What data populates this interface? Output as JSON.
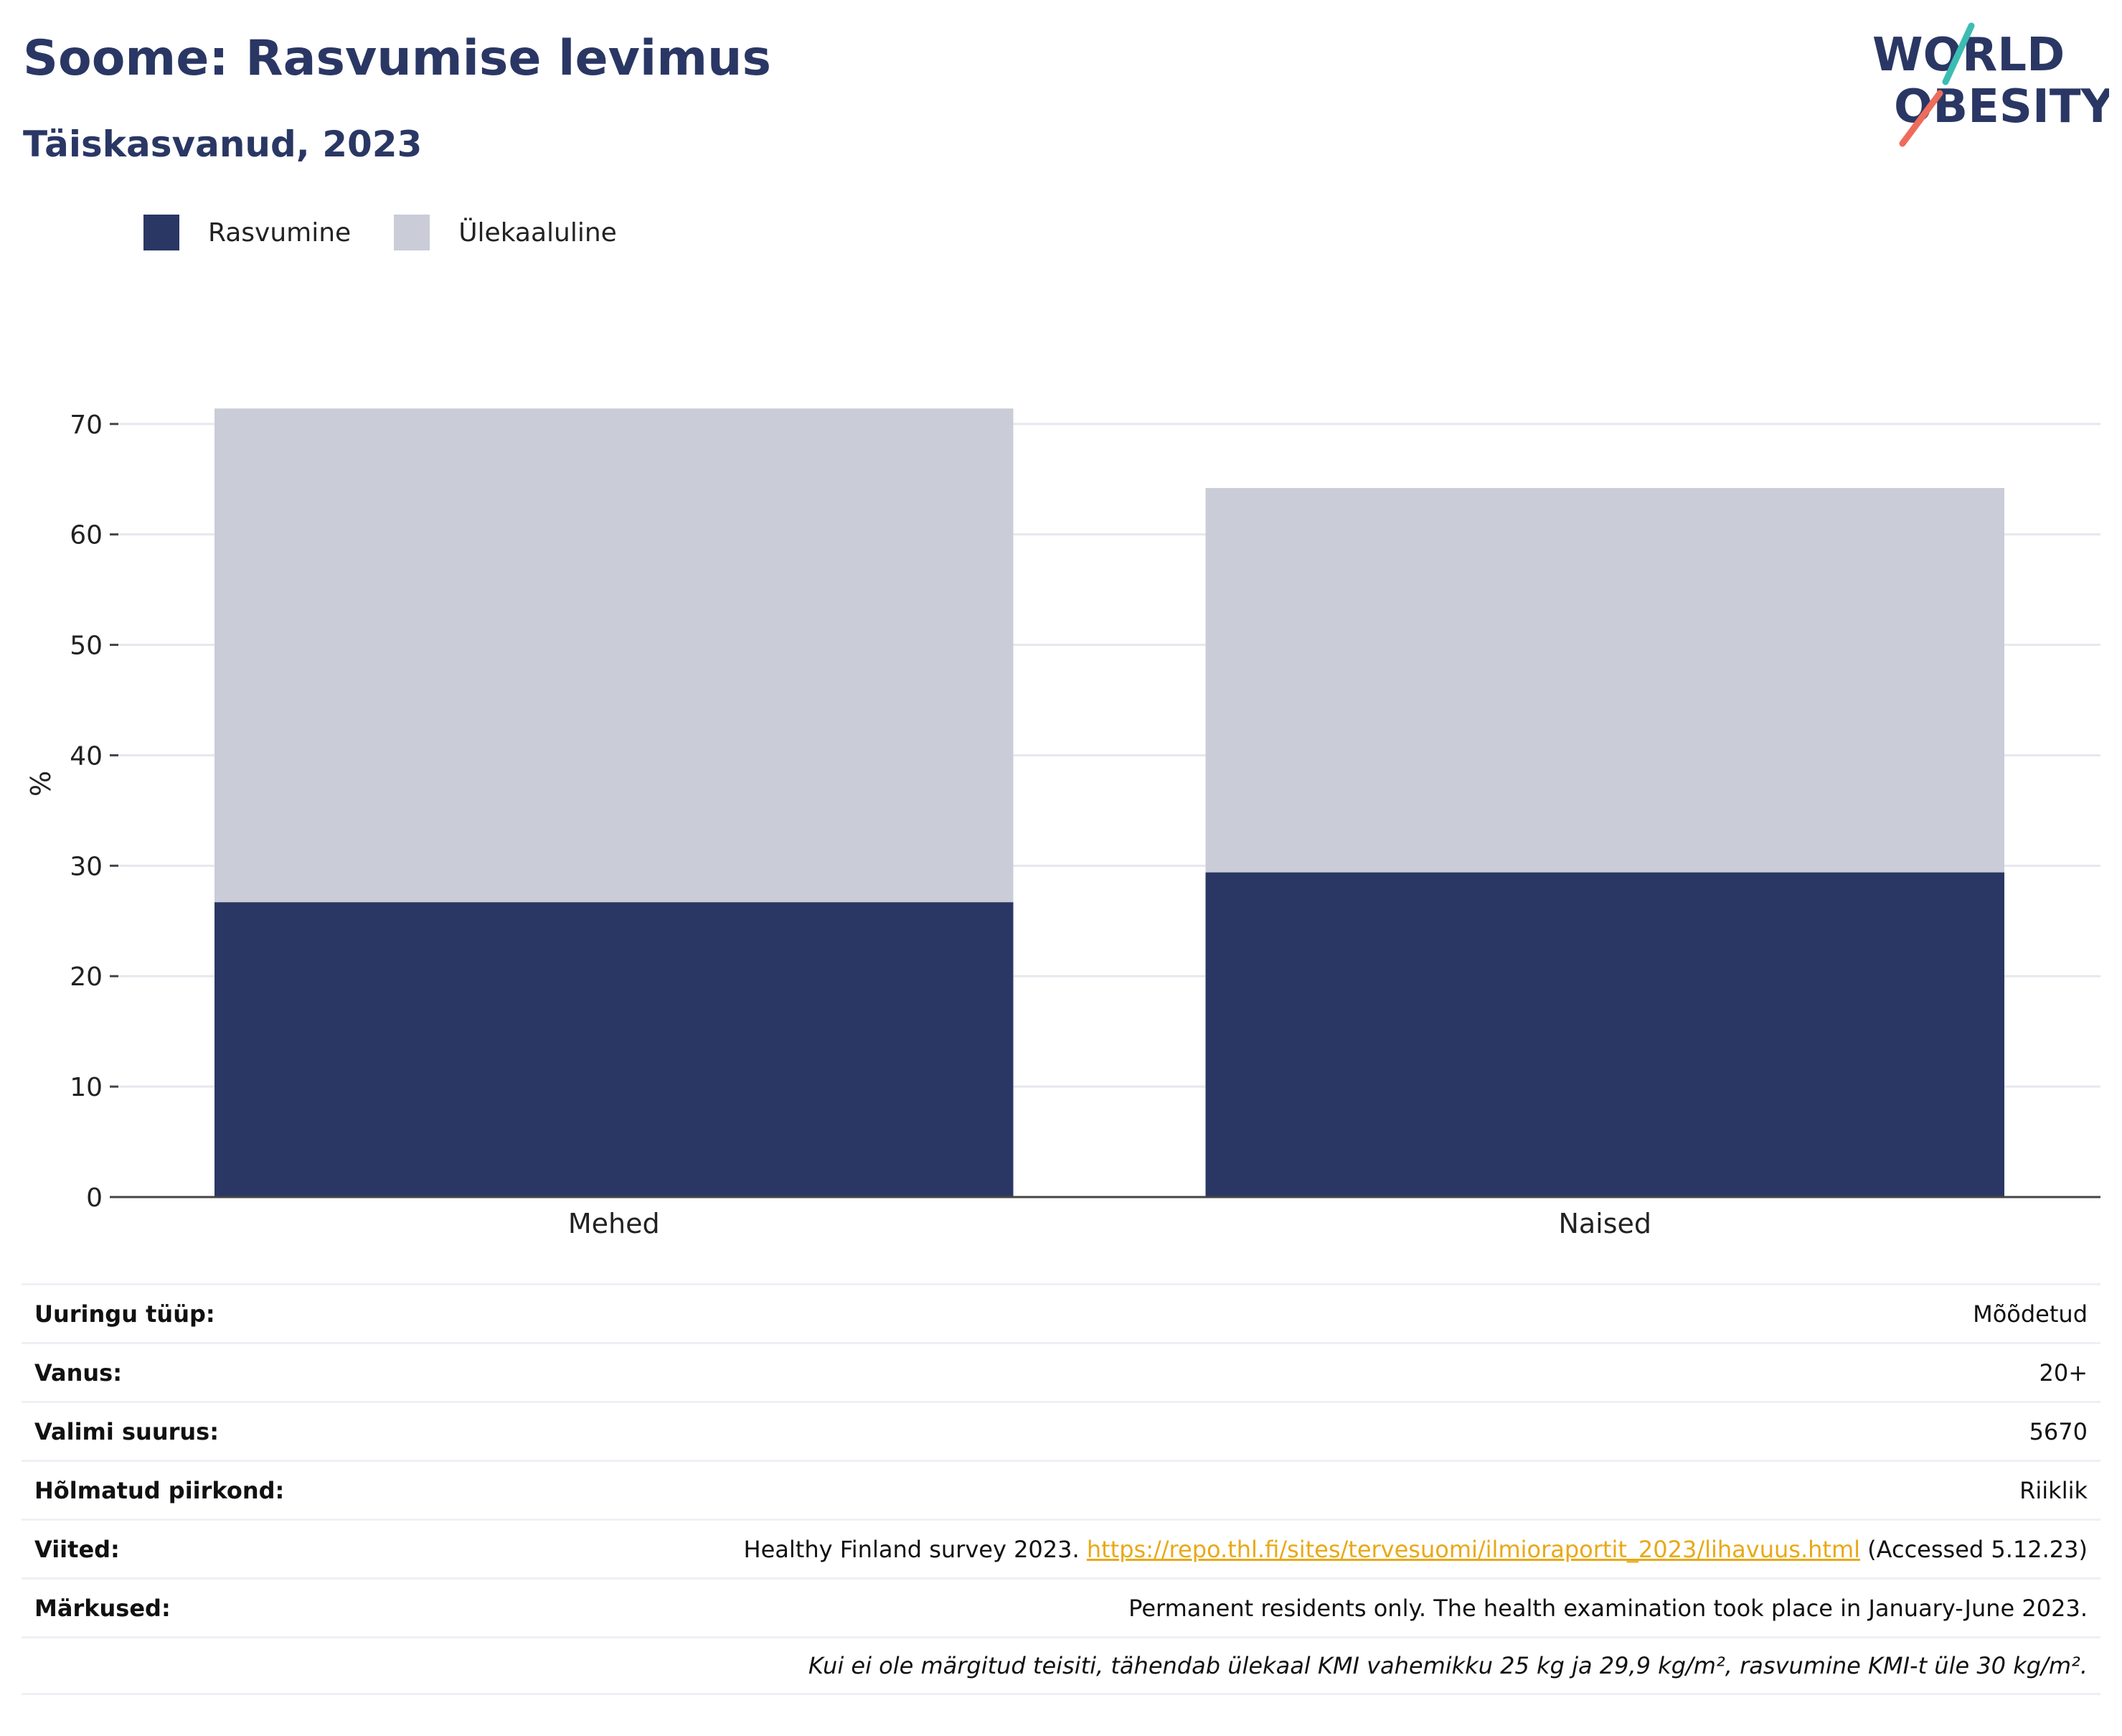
{
  "header": {
    "title": "Soome: Rasvumise levimus",
    "subtitle": "Täiskasvanud, 2023"
  },
  "logo": {
    "line1": "WORLD",
    "line2": "OBESITY"
  },
  "colors": {
    "obesity": "#2a3764",
    "overweight": "#cacdd8",
    "title": "#2a3764",
    "link": "#e8a917",
    "grid": "#e6e8ef"
  },
  "legend": {
    "items": [
      {
        "label": "Rasvumine",
        "color": "#2a3764"
      },
      {
        "label": "Ülekaaluline",
        "color": "#cacdd8"
      }
    ]
  },
  "chart_data": {
    "type": "bar",
    "stacked": true,
    "categories": [
      "Mehed",
      "Naised"
    ],
    "series": [
      {
        "name": "Rasvumine",
        "values": [
          26.7,
          29.4
        ]
      },
      {
        "name": "Ülekaaluline",
        "values": [
          44.7,
          34.8
        ]
      }
    ],
    "totals": [
      71.4,
      64.2
    ],
    "ylabel": "%",
    "ylim": [
      0,
      72
    ],
    "yticks": [
      0,
      10,
      20,
      30,
      40,
      50,
      60,
      70
    ],
    "grid": true,
    "legend_position": "top-left"
  },
  "info": {
    "rows": [
      {
        "label": "Uuringu tüüp:",
        "value": "Mõõdetud"
      },
      {
        "label": "Vanus:",
        "value": "20+"
      },
      {
        "label": "Valimi suurus:",
        "value": "5670"
      },
      {
        "label": "Hõlmatud piirkond:",
        "value": "Riiklik"
      }
    ],
    "references": {
      "label": "Viited:",
      "text_before": "Healthy Finland survey 2023.",
      "link": "https://repo.thl.fi/sites/tervesuomi/ilmioraportit_2023/lihavuus.html",
      "text_after": "(Accessed 5.12.23)"
    },
    "notes": {
      "label": "Märkused:",
      "value": "Permanent residents only. The health examination took place in January-June 2023."
    },
    "footnote": "Kui ei ole märgitud teisiti, tähendab ülekaal KMI vahemikku 25 kg ja 29,9 kg/m², rasvumine KMI-t üle 30 kg/m²."
  }
}
